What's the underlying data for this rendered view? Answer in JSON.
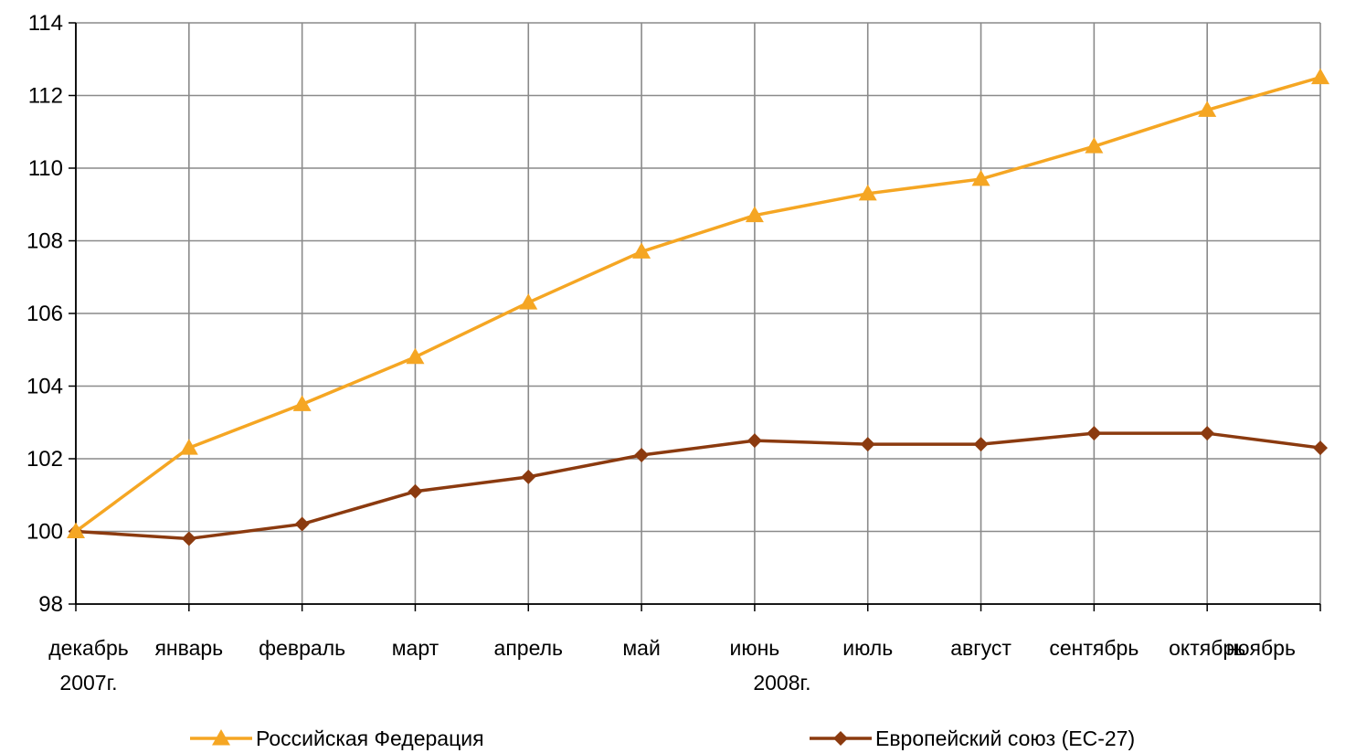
{
  "chart_data": {
    "type": "line",
    "categories": [
      "декабрь",
      "январь",
      "февраль",
      "март",
      "апрель",
      "май",
      "июнь",
      "июль",
      "август",
      "сентябрь",
      "октябрь",
      "ноябрь"
    ],
    "category_sublabels": [
      {
        "index": 0,
        "text": "2007г."
      },
      {
        "index": 6,
        "text": "2008г."
      }
    ],
    "series": [
      {
        "name": "Российская Федерация",
        "color": "#F5A623",
        "marker": "triangle",
        "values": [
          100.0,
          102.3,
          103.5,
          104.8,
          106.3,
          107.7,
          108.7,
          109.3,
          109.7,
          110.6,
          111.6,
          112.5
        ]
      },
      {
        "name": "Европейский союз (ЕС-27)",
        "color": "#8B3A0F",
        "marker": "diamond",
        "values": [
          100.0,
          99.8,
          100.2,
          101.1,
          101.5,
          102.1,
          102.5,
          102.4,
          102.4,
          102.7,
          102.7,
          102.3
        ]
      }
    ],
    "ylim": [
      98,
      114
    ],
    "yticks": [
      98,
      100,
      102,
      104,
      106,
      108,
      110,
      112,
      114
    ],
    "grid": true,
    "legend_position": "bottom"
  }
}
